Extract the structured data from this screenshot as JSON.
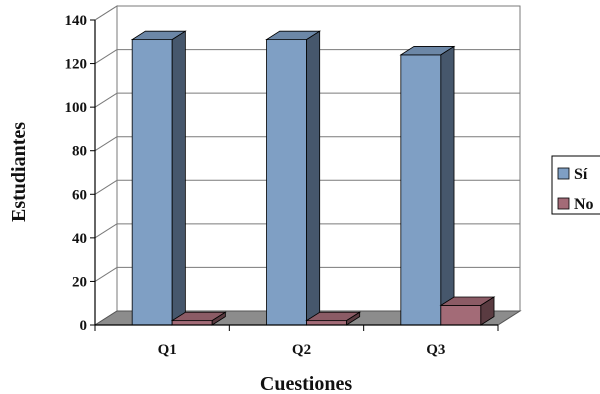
{
  "chart_data": {
    "type": "bar",
    "title": "",
    "xlabel": "Cuestiones",
    "ylabel": "Estudiantes",
    "categories": [
      "Q1",
      "Q2",
      "Q3"
    ],
    "ylim": [
      0,
      140
    ],
    "yticks": [
      0,
      20,
      40,
      60,
      80,
      100,
      120,
      140
    ],
    "grid": true,
    "legend_position": "right",
    "three_d": true,
    "series": [
      {
        "name": "Sí",
        "values": [
          131,
          131,
          124
        ],
        "color": "#7f9fc4"
      },
      {
        "name": "No",
        "values": [
          2,
          2,
          9
        ],
        "color": "#a36b77"
      }
    ]
  }
}
